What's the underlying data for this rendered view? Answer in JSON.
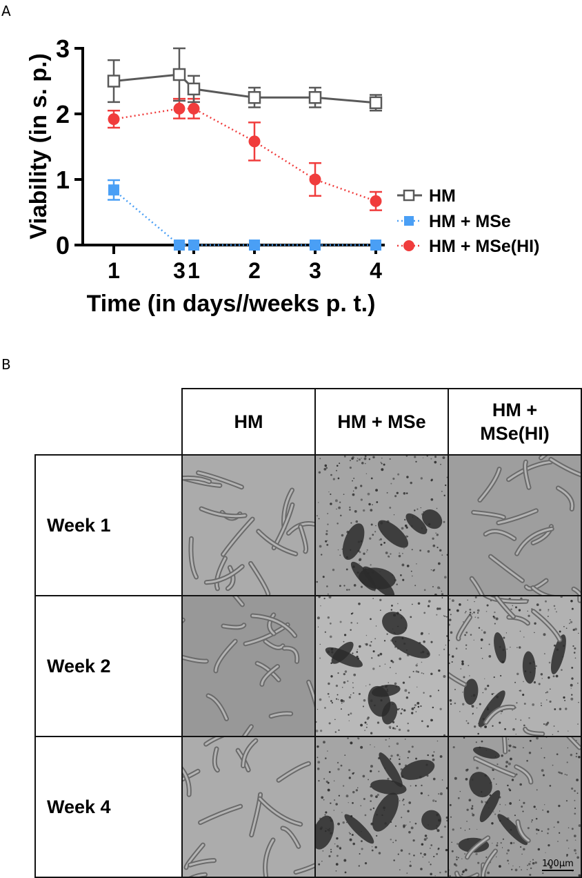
{
  "panel_a_letter": "A",
  "panel_b_letter": "B",
  "chart_data": {
    "type": "line",
    "xlabel": "Time (in days//weeks p. t.)",
    "ylabel": "Viability (in s. p.)",
    "ylim": [
      0,
      3
    ],
    "yticks": [
      "0",
      "1",
      "2",
      "3"
    ],
    "x_tick_labels": [
      "1",
      "3",
      "1",
      "2",
      "3",
      "4"
    ],
    "x_positions": [
      "day 1",
      "day 3",
      "week 1",
      "week 2",
      "week 3",
      "week 4"
    ],
    "legend_placement": "right",
    "series": [
      {
        "name": "HM",
        "color": "#595959",
        "marker": "open-square",
        "line": "solid",
        "values": [
          2.5,
          2.6,
          2.38,
          2.25,
          2.25,
          2.17
        ],
        "errors": [
          0.32,
          0.4,
          0.2,
          0.15,
          0.15,
          0.12
        ]
      },
      {
        "name": "HM + MSe",
        "color": "#4a9ff5",
        "marker": "filled-square",
        "line": "dotted",
        "values": [
          0.84,
          0,
          0,
          0,
          0,
          0
        ],
        "errors": [
          0.15,
          0,
          0,
          0,
          0,
          0
        ]
      },
      {
        "name": "HM + MSe(HI)",
        "color": "#f03c3c",
        "marker": "filled-circle",
        "line": "dotted",
        "values": [
          1.92,
          2.08,
          2.08,
          1.58,
          1.0,
          0.67
        ],
        "errors": [
          0.13,
          0.15,
          0.15,
          0.29,
          0.25,
          0.14
        ]
      }
    ]
  },
  "panel_b": {
    "columns": [
      "HM",
      "HM + MSe",
      "HM +\nMSe(HI)"
    ],
    "rows": [
      "Week 1",
      "Week 2",
      "Week 4"
    ],
    "scale_bar": "100μm"
  }
}
